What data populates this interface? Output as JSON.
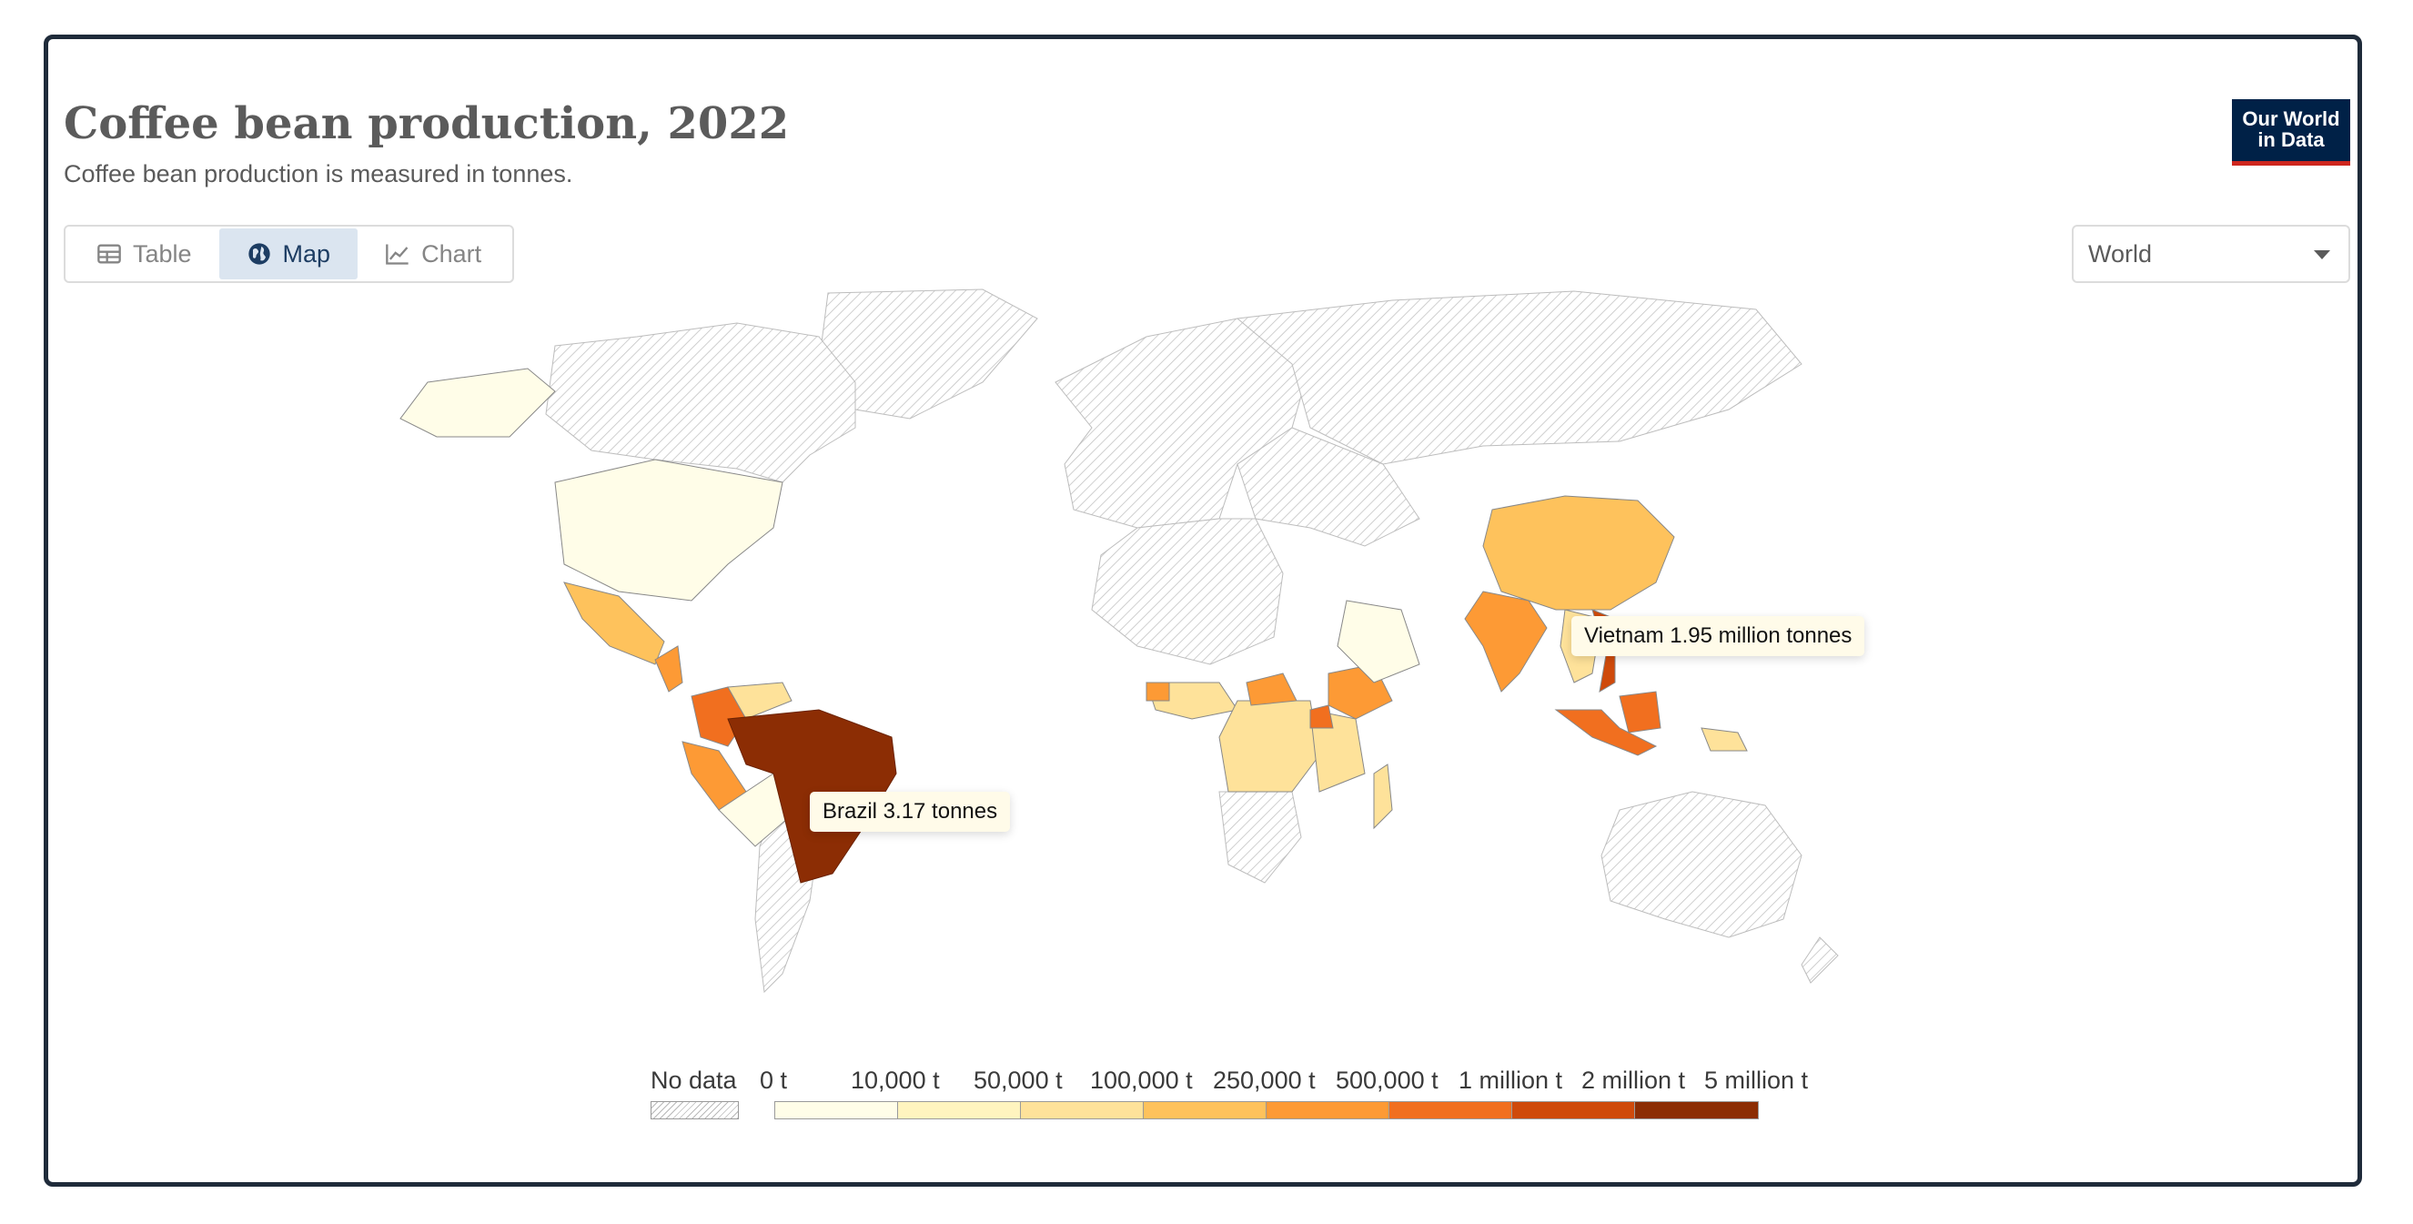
{
  "header": {
    "title": "Coffee bean production, 2022",
    "subtitle": "Coffee bean production is measured in tonnes."
  },
  "logo": {
    "line1": "Our World",
    "line2": "in Data"
  },
  "tabs": [
    {
      "label": "Table",
      "icon": "table-icon",
      "active": false
    },
    {
      "label": "Map",
      "icon": "globe-icon",
      "active": true
    },
    {
      "label": "Chart",
      "icon": "line-chart-icon",
      "active": false
    }
  ],
  "region_select": {
    "value": "World"
  },
  "tooltips": {
    "vietnam": "Vietnam 1.95 million tonnes",
    "brazil": "Brazil 3.17 tonnes"
  },
  "legend": {
    "no_data_label": "No data",
    "bin_labels": [
      "0 t",
      "10,000 t",
      "50,000 t",
      "100,000 t",
      "250,000 t",
      "500,000 t",
      "1 million t",
      "2 million t",
      "5 million t"
    ],
    "bin_colors": [
      "#fffde8",
      "#fff4bf",
      "#fee29a",
      "#fec25c",
      "#fd9a35",
      "#f16f1f",
      "#cf4a0b",
      "#8c2d04"
    ]
  },
  "colors": {
    "no_data": "#b9b9b9",
    "accent_tab": "#dbe5f0",
    "frame": "#1f2b3a",
    "logo_bg": "#002147",
    "logo_underline": "#ce261e"
  }
}
